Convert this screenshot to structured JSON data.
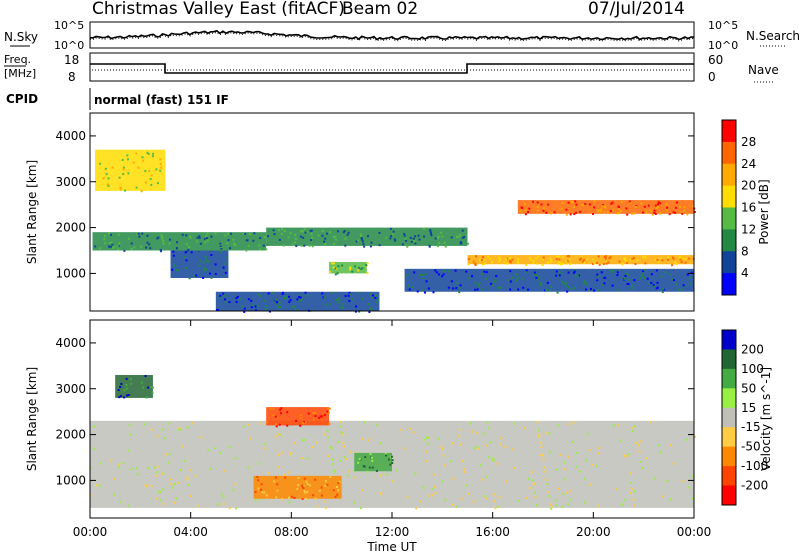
{
  "header": {
    "title": "Christmas Valley East (fitACF)",
    "beam": "Beam 02",
    "date": "07/Jul/2014"
  },
  "noise_panel": {
    "left_label": "N.Sky",
    "right_label": "N.Search",
    "ticks_left": [
      "10^5",
      "10^0"
    ],
    "ticks_right": [
      "10^5",
      "10^0"
    ]
  },
  "freq_panel": {
    "left_label_1": "Freq.",
    "left_label_2": "[MHz]",
    "right_label": "Nave",
    "ticks_left": [
      "18",
      "8"
    ],
    "ticks_right": [
      "60",
      "0"
    ]
  },
  "cpid": {
    "label": "CPID",
    "value": "normal (fast) 151 IF"
  },
  "chart_data": [
    {
      "type": "heatmap",
      "name": "power",
      "ylabel": "Slant Range [km]",
      "yticks": [
        "1000",
        "2000",
        "3000",
        "4000"
      ],
      "ylim": [
        180,
        4500
      ],
      "xlim": [
        "00:00",
        "24:00"
      ],
      "colorbar_label": "Power [dB]",
      "colorbar_ticks": [
        "28",
        "24",
        "20",
        "16",
        "12",
        "8",
        "4"
      ],
      "colorbar_colors": [
        "#ff0000",
        "#ff6600",
        "#ffaa00",
        "#ffdd00",
        "#55bb44",
        "#228844",
        "#114499",
        "#0000ff"
      ],
      "regions": [
        {
          "t0": 0.1,
          "t1": 7.0,
          "r0": 1500,
          "r1": 1900,
          "level": 5
        },
        {
          "t0": 3.2,
          "t1": 5.5,
          "r0": 900,
          "r1": 1500,
          "level": 6
        },
        {
          "t0": 5.0,
          "t1": 11.5,
          "r0": 180,
          "r1": 600,
          "level": 6
        },
        {
          "t0": 7.0,
          "t1": 15.0,
          "r0": 1600,
          "r1": 2000,
          "level": 5
        },
        {
          "t0": 9.5,
          "t1": 11.0,
          "r0": 1000,
          "r1": 1250,
          "level": 4
        },
        {
          "t0": 12.5,
          "t1": 24.0,
          "r0": 600,
          "r1": 1100,
          "level": 6
        },
        {
          "t0": 15.0,
          "t1": 24.0,
          "r0": 1200,
          "r1": 1400,
          "level": 2
        },
        {
          "t0": 17.0,
          "t1": 24.0,
          "r0": 2300,
          "r1": 2600,
          "level": 1
        },
        {
          "t0": 0.2,
          "t1": 3.0,
          "r0": 2800,
          "r1": 3700,
          "level": 3
        }
      ]
    },
    {
      "type": "heatmap",
      "name": "velocity",
      "ylabel": "Slant Range [km]",
      "yticks": [
        "1000",
        "2000",
        "3000",
        "4000"
      ],
      "ylim": [
        180,
        4500
      ],
      "xlim": [
        "00:00",
        "24:00"
      ],
      "xticks": [
        "00:00",
        "04:00",
        "08:00",
        "12:00",
        "16:00",
        "20:00",
        "00:00"
      ],
      "xlabel": "Time UT",
      "colorbar_label": "Velocity [m s^-1]",
      "colorbar_ticks": [
        "200",
        "100",
        "50",
        "15",
        "-15",
        "-50",
        "-100",
        "-200"
      ],
      "colorbar_colors": [
        "#0000cc",
        "#226633",
        "#44aa44",
        "#99ee44",
        "#c0c0b8",
        "#ffcc44",
        "#ff8800",
        "#ff4400",
        "#ff0000"
      ],
      "regions": [
        {
          "t0": 0.0,
          "t1": 24.0,
          "r0": 400,
          "r1": 2300,
          "level": 4
        },
        {
          "t0": 6.5,
          "t1": 10.0,
          "r0": 600,
          "r1": 1100,
          "level": 6
        },
        {
          "t0": 10.5,
          "t1": 12.0,
          "r0": 1200,
          "r1": 1600,
          "level": 2
        },
        {
          "t0": 1.0,
          "t1": 2.5,
          "r0": 2800,
          "r1": 3300,
          "level": 1
        },
        {
          "t0": 7.0,
          "t1": 9.5,
          "r0": 2200,
          "r1": 2600,
          "level": 7
        }
      ]
    }
  ]
}
